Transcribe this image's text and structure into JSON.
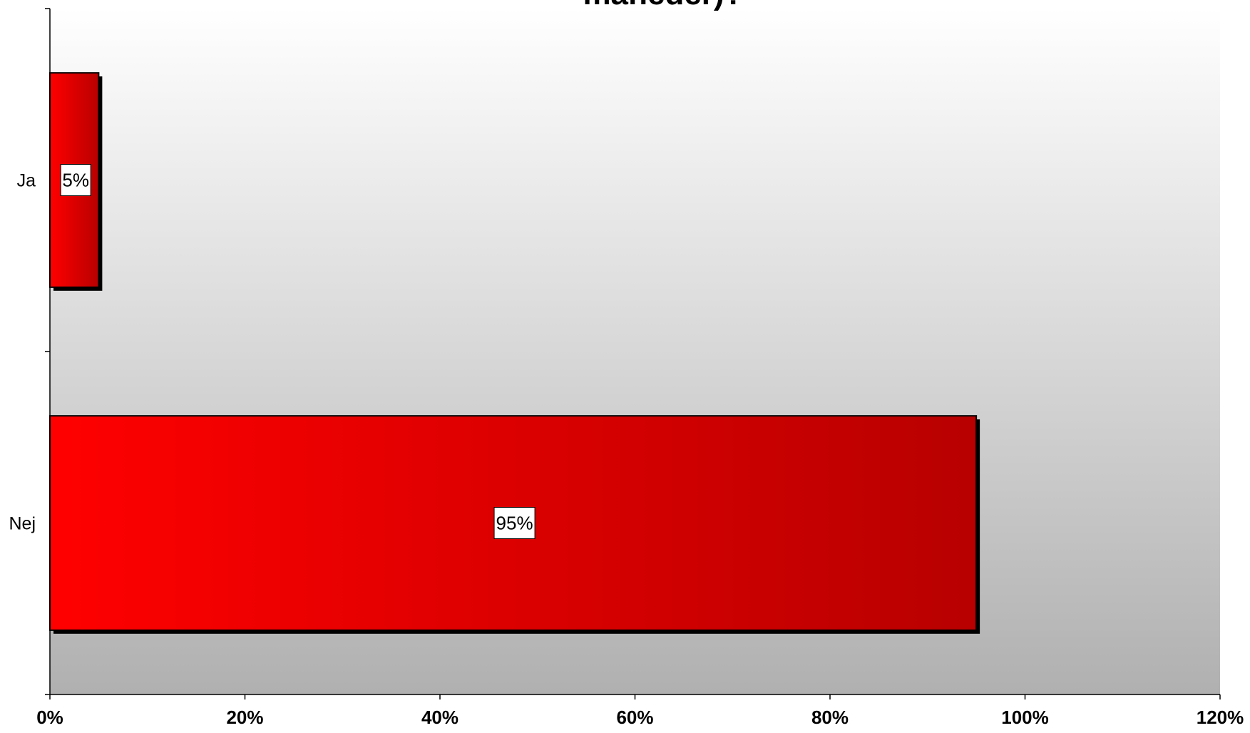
{
  "chart_data": {
    "type": "bar",
    "orientation": "horizontal",
    "title": "måneder)?",
    "categories": [
      "Ja",
      "Nej"
    ],
    "values": [
      5,
      95
    ],
    "data_labels": [
      "5%",
      "95%"
    ],
    "xlim": [
      0,
      120
    ],
    "x_ticks": [
      0,
      20,
      40,
      60,
      80,
      100,
      120
    ],
    "x_tick_labels": [
      "0%",
      "20%",
      "40%",
      "60%",
      "80%",
      "100%",
      "120%"
    ],
    "xlabel": "",
    "ylabel": "",
    "grid": false,
    "legend": "none",
    "colors": {
      "bar_light": "#ff0000",
      "bar_dark": "#b80000",
      "shadow": "#000000",
      "plot_bg_top": "#ffffff",
      "plot_bg_bottom": "#b0b0b0"
    }
  }
}
